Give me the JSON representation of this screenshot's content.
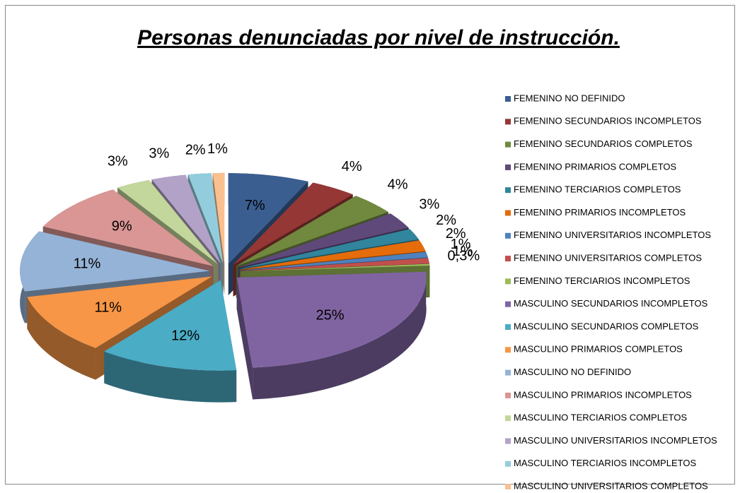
{
  "chart_data": {
    "type": "pie",
    "title": "Personas denunciadas por nivel de instrucción.",
    "categories": [
      "FEMENINO NO DEFINIDO",
      "FEMENINO SECUNDARIOS INCOMPLETOS",
      "FEMENINO SECUNDARIOS  COMPLETOS",
      "FEMENINO PRIMARIOS COMPLETOS",
      "FEMENINO TERCIARIOS COMPLETOS",
      "FEMENINO PRIMARIOS  INCOMPLETOS",
      "FEMENINO UNIVERSITARIOS  INCOMPLETOS",
      "FEMENINO UNIVERSITARIOS COMPLETOS",
      "FEMENINO TERCIARIOS INCOMPLETOS",
      "MASCULINO SECUNDARIOS INCOMPLETOS",
      "MASCULINO SECUNDARIOS  COMPLETOS",
      "MASCULINO PRIMARIOS COMPLETOS",
      "MASCULINO NO DEFINIDO",
      "MASCULINO PRIMARIOS  INCOMPLETOS",
      "MASCULINO TERCIARIOS COMPLETOS",
      "MASCULINO UNIVERSITARIOS  INCOMPLETOS",
      "MASCULINO TERCIARIOS INCOMPLETOS",
      "MASCULINO UNIVERSITARIOS COMPLETOS"
    ],
    "values": [
      7,
      4,
      4,
      3,
      2,
      2,
      1,
      1,
      0.3,
      25,
      12,
      11,
      11,
      9,
      3,
      3,
      2,
      1
    ],
    "value_labels": [
      "7%",
      "4%",
      "4%",
      "3%",
      "2%",
      "2%",
      "1%",
      "1%",
      "0,3%",
      "25%",
      "12%",
      "11%",
      "11%",
      "9%",
      "3%",
      "3%",
      "2%",
      "1%"
    ],
    "colors": [
      "#3b5e91",
      "#953735",
      "#71893f",
      "#5f497a",
      "#31859c",
      "#e46c0a",
      "#4f81bd",
      "#c0504d",
      "#9bbb59",
      "#8064a2",
      "#4bacc6",
      "#f79646",
      "#95b3d7",
      "#d99694",
      "#c3d69b",
      "#b3a2c7",
      "#93cddd",
      "#fac090"
    ],
    "legend": "right"
  }
}
